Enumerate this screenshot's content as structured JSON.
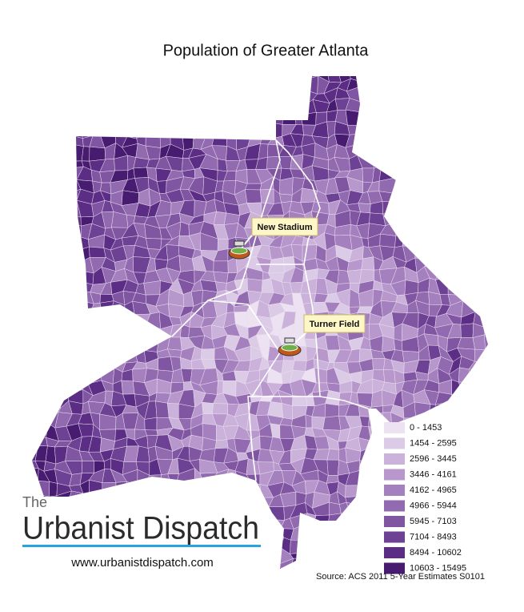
{
  "title": "Population of Greater Atlanta",
  "legend": {
    "items": [
      {
        "label": "0 - 1453",
        "color": "#ece2f1"
      },
      {
        "label": "1454 - 2595",
        "color": "#dccbe6"
      },
      {
        "label": "2596 - 3445",
        "color": "#cbb2da"
      },
      {
        "label": "3446 - 4161",
        "color": "#b898cc"
      },
      {
        "label": "4162 - 4965",
        "color": "#a580be"
      },
      {
        "label": "4966 - 5944",
        "color": "#926aaf"
      },
      {
        "label": "5945 - 7103",
        "color": "#8055a2"
      },
      {
        "label": "7104 - 8493",
        "color": "#6d4194"
      },
      {
        "label": "8494 - 10602",
        "color": "#5b2d85"
      },
      {
        "label": "10603 - 15495",
        "color": "#461b70"
      }
    ]
  },
  "annotations": [
    {
      "label": "New Stadium"
    },
    {
      "label": "Turner Field"
    }
  ],
  "logo": {
    "small": "The",
    "main": "Urbanist Dispatch"
  },
  "url": "www.urbanistdispatch.com",
  "source": "Source: ACS 2011 5-Year Estimates S0101"
}
